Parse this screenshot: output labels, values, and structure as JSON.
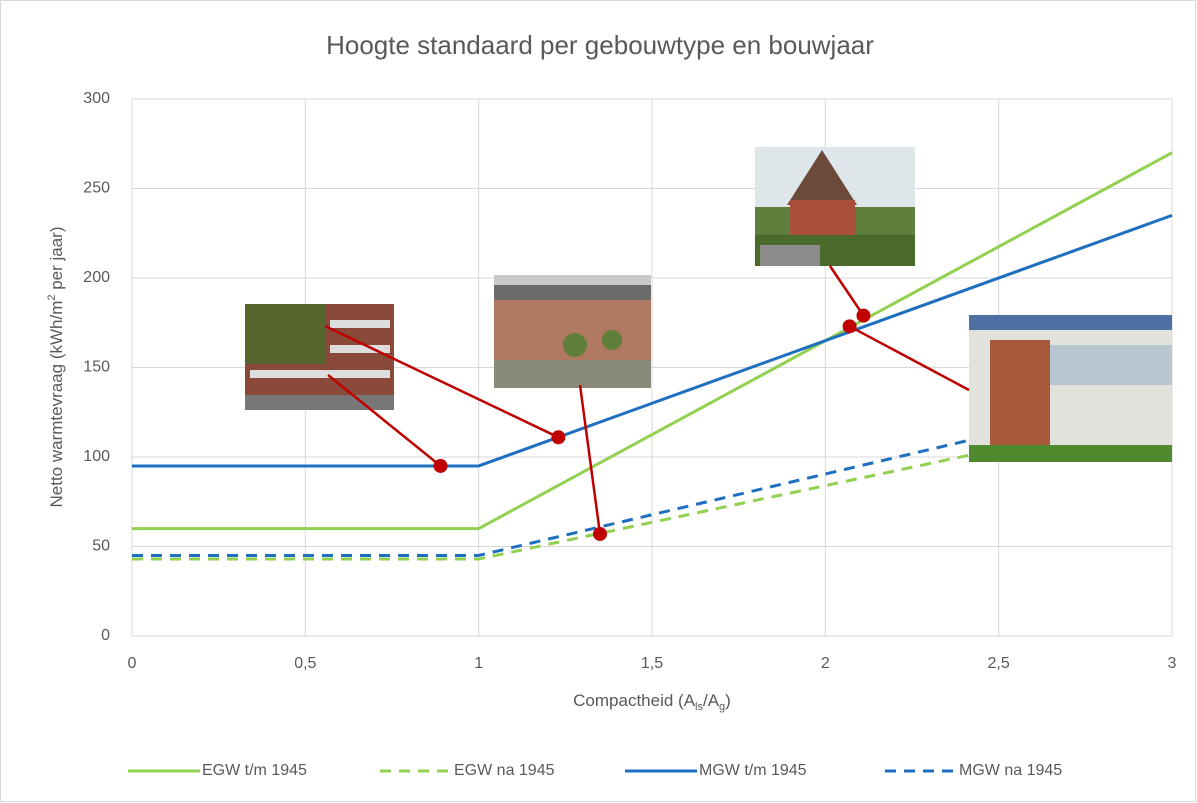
{
  "chart_data": {
    "type": "line",
    "title": "Hoogte standaard per gebouwtype en bouwjaar",
    "ylabel": [
      "Netto warmtevraag (kWh/m",
      "2",
      " per jaar)"
    ],
    "xlabel": [
      "Compactheid (A",
      "ls",
      "/A",
      "g",
      ")"
    ],
    "xlim": [
      0,
      3
    ],
    "xticks": [
      0,
      {
        "value": 0.5,
        "label": "0,5"
      },
      1,
      {
        "value": 1.5,
        "label": "1,5"
      },
      2,
      {
        "value": 2.5,
        "label": "2,5"
      },
      3
    ],
    "ylim": [
      0,
      300
    ],
    "yticks": [
      0,
      50,
      100,
      150,
      200,
      250,
      300
    ],
    "grid": true,
    "legend": "bottom",
    "series": [
      {
        "name": "EGW t/m 1945",
        "color": "#92d050",
        "dash": false,
        "x": [
          0,
          1,
          3
        ],
        "values": [
          60,
          60,
          270
        ]
      },
      {
        "name": "EGW na 1945",
        "color": "#92d050",
        "dash": true,
        "x": [
          0,
          1,
          3
        ],
        "values": [
          43,
          43,
          125
        ]
      },
      {
        "name": "MGW t/m 1945",
        "color": "#1f6fc0",
        "dash": false,
        "x": [
          0,
          1,
          3
        ],
        "values": [
          95,
          95,
          235
        ]
      },
      {
        "name": "MGW na 1945",
        "color": "#1f6fc0",
        "dash": true,
        "x": [
          0,
          1,
          3
        ],
        "values": [
          45,
          45,
          136
        ]
      }
    ],
    "highlight_points": {
      "color": "#c00000",
      "x": [
        0.89,
        1.23,
        1.35,
        2.11,
        2.07
      ],
      "values": [
        95,
        111,
        57,
        179,
        173
      ]
    }
  }
}
